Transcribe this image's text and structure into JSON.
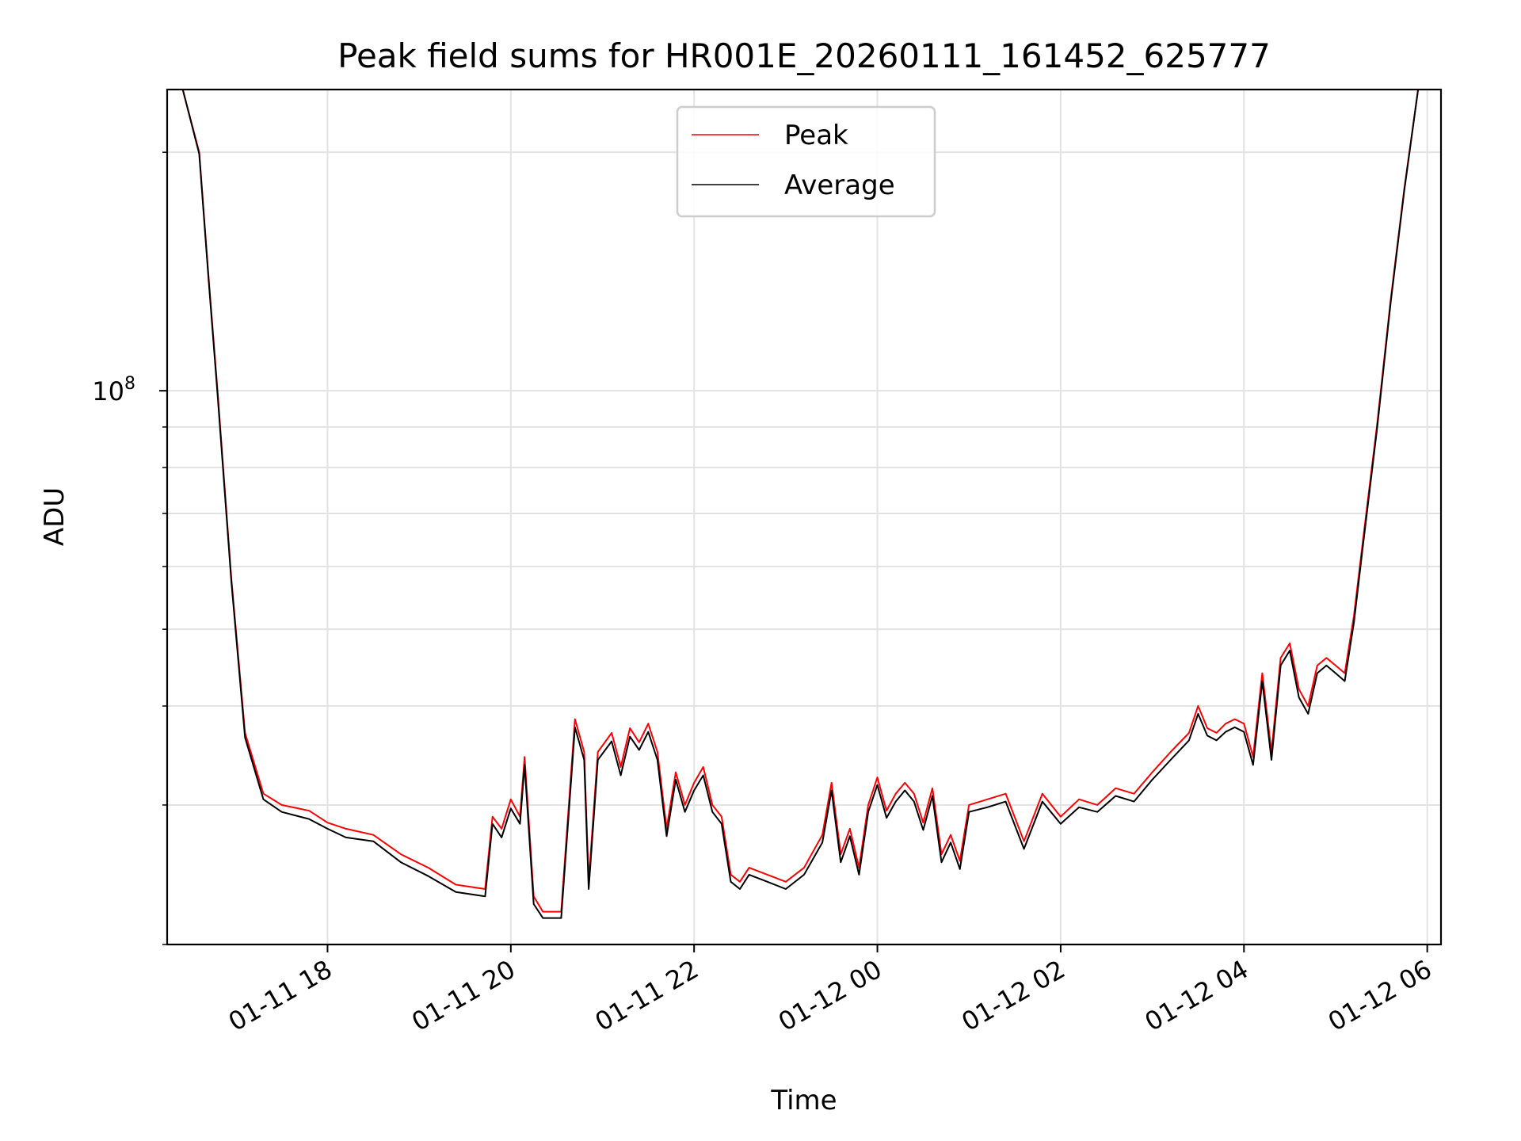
{
  "chart_data": {
    "type": "line",
    "title": "Peak field sums for HR001E_20260111_161452_625777",
    "xlabel": "Time",
    "ylabel": "ADU",
    "yscale": "log",
    "ylim": [
      20000000,
      240000000
    ],
    "x_unit": "hours since 01-11 00:00",
    "xlim": [
      16.25,
      30.15
    ],
    "x_ticks": [
      {
        "value": 18,
        "label": "01-11 18"
      },
      {
        "value": 20,
        "label": "01-11 20"
      },
      {
        "value": 22,
        "label": "01-11 22"
      },
      {
        "value": 24,
        "label": "01-12 00"
      },
      {
        "value": 26,
        "label": "01-12 02"
      },
      {
        "value": 28,
        "label": "01-12 04"
      },
      {
        "value": 30,
        "label": "01-12 06"
      }
    ],
    "y_major_tick": {
      "value": 100000000,
      "base": "10",
      "exponent": "8"
    },
    "grid": true,
    "legend": {
      "position": "upper-center",
      "entries": [
        {
          "label": "Peak",
          "color": "#ff0000"
        },
        {
          "label": "Average",
          "color": "#000000"
        }
      ]
    },
    "series": [
      {
        "name": "Peak",
        "color": "#ff0000",
        "x": [
          16.25,
          16.42,
          16.6,
          16.7,
          16.8,
          16.95,
          17.1,
          17.3,
          17.5,
          17.8,
          18.0,
          18.2,
          18.5,
          18.8,
          19.1,
          19.4,
          19.72,
          19.8,
          19.9,
          20.0,
          20.1,
          20.15,
          20.25,
          20.35,
          20.55,
          20.7,
          20.8,
          20.85,
          20.95,
          21.1,
          21.2,
          21.3,
          21.4,
          21.5,
          21.6,
          21.7,
          21.8,
          21.9,
          22.0,
          22.1,
          22.2,
          22.3,
          22.4,
          22.5,
          22.6,
          22.8,
          23.0,
          23.2,
          23.4,
          23.5,
          23.6,
          23.7,
          23.8,
          23.9,
          24.0,
          24.1,
          24.2,
          24.3,
          24.4,
          24.5,
          24.6,
          24.7,
          24.8,
          24.9,
          25.0,
          25.2,
          25.4,
          25.6,
          25.8,
          26.0,
          26.2,
          26.4,
          26.6,
          26.8,
          27.0,
          27.2,
          27.4,
          27.5,
          27.6,
          27.7,
          27.8,
          27.9,
          28.0,
          28.1,
          28.2,
          28.3,
          28.4,
          28.5,
          28.6,
          28.7,
          28.8,
          28.9,
          29.0,
          29.1,
          29.2,
          29.3,
          29.45,
          29.6,
          29.75,
          29.9,
          30.0
        ],
        "values": [
          240000000,
          240000000,
          200000000,
          140000000,
          100000000,
          58000000,
          37000000,
          31000000,
          30000000,
          29500000,
          28500000,
          28000000,
          27500000,
          26000000,
          25000000,
          23800000,
          23500000,
          29000000,
          28000000,
          30500000,
          29000000,
          34500000,
          23000000,
          22000000,
          22000000,
          38500000,
          35000000,
          24000000,
          35000000,
          37000000,
          33500000,
          37500000,
          36000000,
          38000000,
          35000000,
          28000000,
          33000000,
          30000000,
          32000000,
          33500000,
          30000000,
          29000000,
          24500000,
          24000000,
          25000000,
          24500000,
          24000000,
          25000000,
          27500000,
          32000000,
          26000000,
          28000000,
          25000000,
          30000000,
          32500000,
          29500000,
          31000000,
          32000000,
          31000000,
          28500000,
          31500000,
          26000000,
          27500000,
          25500000,
          30000000,
          30500000,
          31000000,
          27000000,
          31000000,
          29000000,
          30500000,
          30000000,
          31500000,
          31000000,
          33000000,
          35000000,
          37000000,
          40000000,
          37500000,
          37000000,
          38000000,
          38500000,
          38000000,
          34500000,
          44000000,
          35000000,
          46000000,
          48000000,
          42000000,
          40000000,
          45000000,
          46000000,
          45000000,
          44000000,
          52000000,
          65000000,
          90000000,
          130000000,
          180000000,
          240000000,
          240000000
        ]
      },
      {
        "name": "Average",
        "color": "#000000",
        "x": [
          16.25,
          16.42,
          16.6,
          16.7,
          16.8,
          16.95,
          17.1,
          17.3,
          17.5,
          17.8,
          18.0,
          18.2,
          18.5,
          18.8,
          19.1,
          19.4,
          19.72,
          19.8,
          19.9,
          20.0,
          20.1,
          20.15,
          20.25,
          20.35,
          20.55,
          20.7,
          20.8,
          20.85,
          20.95,
          21.1,
          21.2,
          21.3,
          21.4,
          21.5,
          21.6,
          21.7,
          21.8,
          21.9,
          22.0,
          22.1,
          22.2,
          22.3,
          22.4,
          22.5,
          22.6,
          22.8,
          23.0,
          23.2,
          23.4,
          23.5,
          23.6,
          23.7,
          23.8,
          23.9,
          24.0,
          24.1,
          24.2,
          24.3,
          24.4,
          24.5,
          24.6,
          24.7,
          24.8,
          24.9,
          25.0,
          25.2,
          25.4,
          25.6,
          25.8,
          26.0,
          26.2,
          26.4,
          26.6,
          26.8,
          27.0,
          27.2,
          27.4,
          27.5,
          27.6,
          27.7,
          27.8,
          27.9,
          28.0,
          28.1,
          28.2,
          28.3,
          28.4,
          28.5,
          28.6,
          28.7,
          28.8,
          28.9,
          29.0,
          29.1,
          29.2,
          29.3,
          29.45,
          29.6,
          29.75,
          29.9,
          30.0
        ],
        "values": [
          240000000,
          240000000,
          199000000,
          139000000,
          99000000,
          57500000,
          36500000,
          30500000,
          29400000,
          28800000,
          28000000,
          27300000,
          27000000,
          25400000,
          24400000,
          23300000,
          23000000,
          28400000,
          27300000,
          29700000,
          28400000,
          33700000,
          22500000,
          21600000,
          21600000,
          37600000,
          34200000,
          23500000,
          34200000,
          36100000,
          32700000,
          36600000,
          35200000,
          37100000,
          34200000,
          27400000,
          32300000,
          29400000,
          31300000,
          32700000,
          29400000,
          28400000,
          24000000,
          23500000,
          24500000,
          24000000,
          23500000,
          24500000,
          26900000,
          31300000,
          25400000,
          27400000,
          24500000,
          29400000,
          31800000,
          28900000,
          30300000,
          31300000,
          30300000,
          27900000,
          30800000,
          25400000,
          26900000,
          24900000,
          29400000,
          29800000,
          30300000,
          26400000,
          30300000,
          28400000,
          29800000,
          29400000,
          30800000,
          30300000,
          32300000,
          34200000,
          36200000,
          39100000,
          36700000,
          36200000,
          37100000,
          37600000,
          37100000,
          33700000,
          43000000,
          34200000,
          45000000,
          47000000,
          41000000,
          39100000,
          44000000,
          45000000,
          44000000,
          43000000,
          51000000,
          64000000,
          89000000,
          129000000,
          179000000,
          240000000,
          240000000
        ]
      }
    ]
  }
}
